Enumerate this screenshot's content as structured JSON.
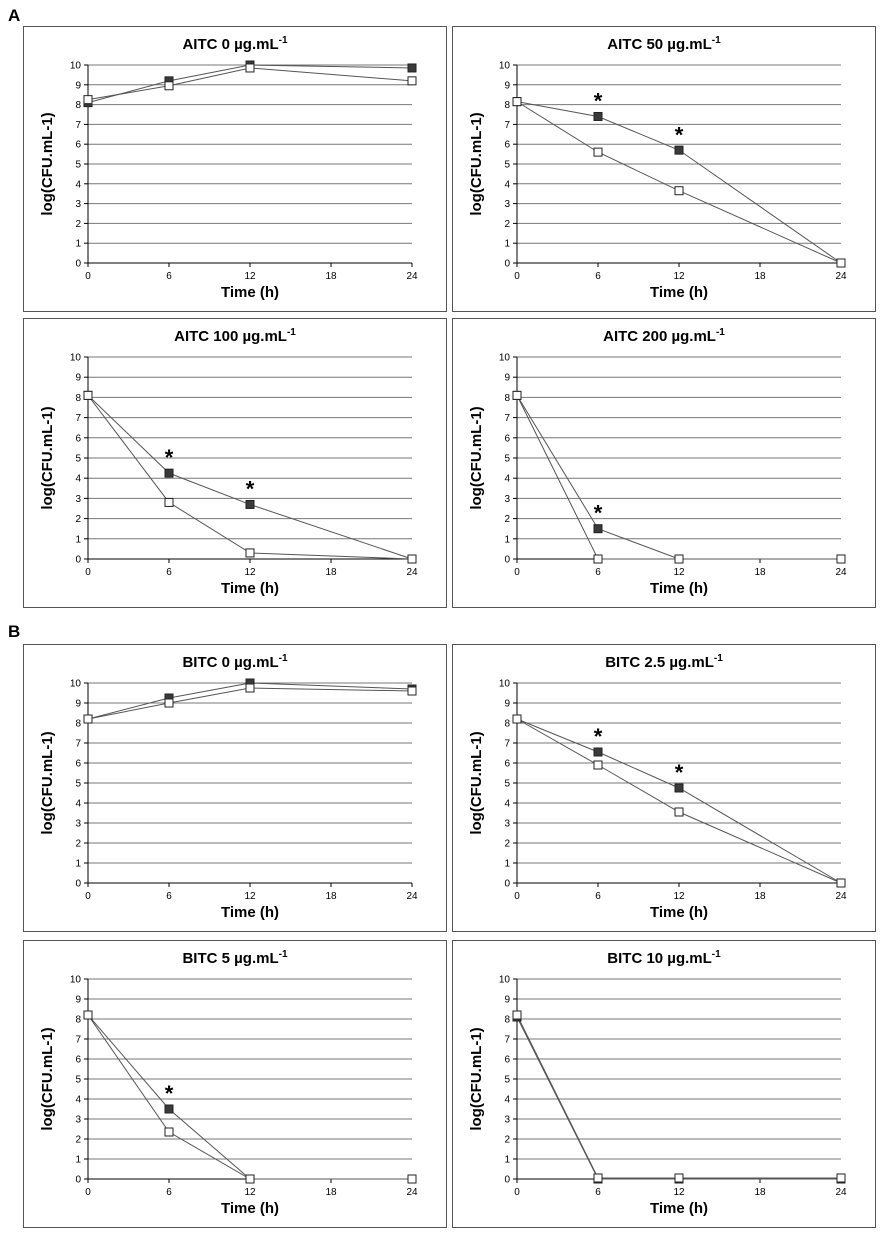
{
  "figure": {
    "section_labels": [
      "A",
      "B"
    ],
    "colors": {
      "filled_marker": "#3a3a3a",
      "open_marker": "#ffffff",
      "line": "#555555",
      "grid": "#777777"
    }
  },
  "chart_data": [
    {
      "section": "A",
      "type": "line",
      "title": "AITC 0 µg.mL",
      "title_superscript": "-1",
      "xlabel": "Time (h)",
      "ylabel": "log(CFU.mL-1)",
      "xticks": [
        "0",
        "6",
        "12",
        "18",
        "24"
      ],
      "yticks": [
        "0",
        "1",
        "2",
        "3",
        "4",
        "5",
        "6",
        "7",
        "8",
        "9",
        "10"
      ],
      "xlim": [
        0,
        24
      ],
      "ylim": [
        0,
        10
      ],
      "series": [
        {
          "name": "filled",
          "marker": "filled-square",
          "x": [
            0,
            6,
            12,
            24
          ],
          "y": [
            8.1,
            9.2,
            10.0,
            9.85
          ]
        },
        {
          "name": "open",
          "marker": "open-square",
          "x": [
            0,
            6,
            12,
            24
          ],
          "y": [
            8.25,
            8.95,
            9.85,
            9.2
          ]
        }
      ],
      "annotations": []
    },
    {
      "section": "A",
      "type": "line",
      "title": "AITC 50 µg.mL",
      "title_superscript": "-1",
      "xlabel": "Time (h)",
      "ylabel": "log(CFU.mL-1)",
      "xticks": [
        "0",
        "6",
        "12",
        "18",
        "24"
      ],
      "yticks": [
        "0",
        "1",
        "2",
        "3",
        "4",
        "5",
        "6",
        "7",
        "8",
        "9",
        "10"
      ],
      "xlim": [
        0,
        24
      ],
      "ylim": [
        0,
        10
      ],
      "series": [
        {
          "name": "filled",
          "marker": "filled-square",
          "x": [
            0,
            6,
            12,
            24
          ],
          "y": [
            8.15,
            7.4,
            5.7,
            0
          ]
        },
        {
          "name": "open",
          "marker": "open-square",
          "x": [
            0,
            6,
            12,
            24
          ],
          "y": [
            8.15,
            5.6,
            3.65,
            0
          ]
        }
      ],
      "annotations": [
        {
          "text": "*",
          "x": 6,
          "y": 8.2
        },
        {
          "text": "*",
          "x": 12,
          "y": 6.5
        }
      ]
    },
    {
      "section": "A",
      "type": "line",
      "title": "AITC 100 µg.mL",
      "title_superscript": "-1",
      "xlabel": "Time (h)",
      "ylabel": "log(CFU.mL-1)",
      "xticks": [
        "0",
        "6",
        "12",
        "18",
        "24"
      ],
      "yticks": [
        "0",
        "1",
        "2",
        "3",
        "4",
        "5",
        "6",
        "7",
        "8",
        "9",
        "10"
      ],
      "xlim": [
        0,
        24
      ],
      "ylim": [
        0,
        10
      ],
      "series": [
        {
          "name": "filled",
          "marker": "filled-square",
          "x": [
            0,
            6,
            12,
            24
          ],
          "y": [
            8.1,
            4.25,
            2.7,
            0
          ]
        },
        {
          "name": "open",
          "marker": "open-square",
          "x": [
            0,
            6,
            12,
            24
          ],
          "y": [
            8.1,
            2.8,
            0.3,
            0
          ]
        }
      ],
      "annotations": [
        {
          "text": "*",
          "x": 6,
          "y": 5.05
        },
        {
          "text": "*",
          "x": 12,
          "y": 3.5
        }
      ]
    },
    {
      "section": "A",
      "type": "line",
      "title": "AITC 200 µg.mL",
      "title_superscript": "-1",
      "xlabel": "Time (h)",
      "ylabel": "log(CFU.mL-1)",
      "xticks": [
        "0",
        "6",
        "12",
        "18",
        "24"
      ],
      "yticks": [
        "0",
        "1",
        "2",
        "3",
        "4",
        "5",
        "6",
        "7",
        "8",
        "9",
        "10"
      ],
      "xlim": [
        0,
        24
      ],
      "ylim": [
        0,
        10
      ],
      "series": [
        {
          "name": "filled",
          "marker": "filled-square",
          "x": [
            0,
            6,
            12,
            24
          ],
          "y": [
            8.1,
            1.5,
            0,
            0
          ]
        },
        {
          "name": "open",
          "marker": "open-square",
          "x": [
            0,
            6,
            12,
            24
          ],
          "y": [
            8.1,
            0,
            0,
            0
          ]
        }
      ],
      "annotations": [
        {
          "text": "*",
          "x": 6,
          "y": 2.3
        }
      ]
    },
    {
      "section": "B",
      "type": "line",
      "title": "BITC 0 µg.mL",
      "title_superscript": "-1",
      "xlabel": "Time (h)",
      "ylabel": "log(CFU.mL-1)",
      "xticks": [
        "0",
        "6",
        "12",
        "18",
        "24"
      ],
      "yticks": [
        "0",
        "1",
        "2",
        "3",
        "4",
        "5",
        "6",
        "7",
        "8",
        "9",
        "10"
      ],
      "xlim": [
        0,
        24
      ],
      "ylim": [
        0,
        10
      ],
      "series": [
        {
          "name": "filled",
          "marker": "filled-square",
          "x": [
            0,
            6,
            12,
            24
          ],
          "y": [
            8.2,
            9.25,
            10.0,
            9.7
          ]
        },
        {
          "name": "open",
          "marker": "open-square",
          "x": [
            0,
            6,
            12,
            24
          ],
          "y": [
            8.2,
            9.0,
            9.75,
            9.6
          ]
        }
      ],
      "annotations": []
    },
    {
      "section": "B",
      "type": "line",
      "title": "BITC 2.5 µg.mL",
      "title_superscript": "-1",
      "xlabel": "Time (h)",
      "ylabel": "log(CFU.mL-1)",
      "xticks": [
        "0",
        "6",
        "12",
        "18",
        "24"
      ],
      "yticks": [
        "0",
        "1",
        "2",
        "3",
        "4",
        "5",
        "6",
        "7",
        "8",
        "9",
        "10"
      ],
      "xlim": [
        0,
        24
      ],
      "ylim": [
        0,
        10
      ],
      "series": [
        {
          "name": "filled",
          "marker": "filled-square",
          "x": [
            0,
            6,
            12,
            24
          ],
          "y": [
            8.2,
            6.55,
            4.75,
            0
          ]
        },
        {
          "name": "open",
          "marker": "open-square",
          "x": [
            0,
            6,
            12,
            24
          ],
          "y": [
            8.2,
            5.9,
            3.55,
            0
          ]
        }
      ],
      "annotations": [
        {
          "text": "*",
          "x": 6,
          "y": 7.35
        },
        {
          "text": "*",
          "x": 12,
          "y": 5.55
        }
      ]
    },
    {
      "section": "B",
      "type": "line",
      "title": "BITC 5 µg.mL",
      "title_superscript": "-1",
      "xlabel": "Time (h)",
      "ylabel": "log(CFU.mL-1)",
      "xticks": [
        "0",
        "6",
        "12",
        "18",
        "24"
      ],
      "yticks": [
        "0",
        "1",
        "2",
        "3",
        "4",
        "5",
        "6",
        "7",
        "8",
        "9",
        "10"
      ],
      "xlim": [
        0,
        24
      ],
      "ylim": [
        0,
        10
      ],
      "series": [
        {
          "name": "filled",
          "marker": "filled-square",
          "x": [
            0,
            6,
            12,
            24
          ],
          "y": [
            8.2,
            3.5,
            0,
            0
          ]
        },
        {
          "name": "open",
          "marker": "open-square",
          "x": [
            0,
            6,
            12,
            24
          ],
          "y": [
            8.2,
            2.35,
            0,
            0
          ]
        }
      ],
      "annotations": [
        {
          "text": "*",
          "x": 6,
          "y": 4.3
        }
      ]
    },
    {
      "section": "B",
      "type": "line",
      "title": "BITC 10 µg.mL",
      "title_superscript": "-1",
      "xlabel": "Time (h)",
      "ylabel": "log(CFU.mL-1)",
      "xticks": [
        "0",
        "6",
        "12",
        "18",
        "24"
      ],
      "yticks": [
        "0",
        "1",
        "2",
        "3",
        "4",
        "5",
        "6",
        "7",
        "8",
        "9",
        "10"
      ],
      "xlim": [
        0,
        24
      ],
      "ylim": [
        0,
        10
      ],
      "series": [
        {
          "name": "filled",
          "marker": "filled-square",
          "x": [
            0,
            6,
            12,
            24
          ],
          "y": [
            8.1,
            0,
            0,
            0
          ]
        },
        {
          "name": "open",
          "marker": "open-square",
          "x": [
            0,
            6,
            12,
            24
          ],
          "y": [
            8.2,
            0.05,
            0.05,
            0.05
          ]
        }
      ],
      "annotations": []
    }
  ]
}
